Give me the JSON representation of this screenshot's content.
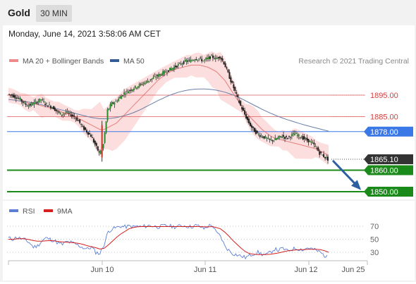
{
  "header": {
    "instrument": "Gold",
    "timeframe": "30 MIN"
  },
  "datetime": "Monday, June 14, 2021 3:58:06 AM CET",
  "legend": {
    "items": [
      {
        "label": "MA 20 + Bollinger Bands",
        "color": "#f08a8a"
      },
      {
        "label": "MA 50",
        "color": "#355c94"
      }
    ],
    "copyright": "Research © 2021 Trading Central"
  },
  "rsi_legend": {
    "items": [
      {
        "label": "RSI",
        "color": "#5b7fd6"
      },
      {
        "label": "9MA",
        "color": "#d62020"
      }
    ]
  },
  "colors": {
    "resistance": "#e06666",
    "pivot": "#3b78e7",
    "support": "#1a8a1a",
    "current": "#333333",
    "arrow": "#2e5fa3",
    "band_fill": "#fbd8d8"
  },
  "chart_data": [
    {
      "type": "candlestick",
      "x_labels": [
        "Jun 10",
        "Jun 11",
        "Jun 12",
        "Jun 25"
      ],
      "levels": [
        {
          "label": "1895.00",
          "value": 1895.0,
          "kind": "resistance"
        },
        {
          "label": "1885.00",
          "value": 1885.0,
          "kind": "resistance"
        },
        {
          "label": "1878.00",
          "value": 1878.0,
          "kind": "pivot"
        },
        {
          "label": "1865.10",
          "value": 1865.1,
          "kind": "current"
        },
        {
          "label": "1860.00",
          "value": 1860.0,
          "kind": "support"
        },
        {
          "label": "1850.00",
          "value": 1850.0,
          "kind": "support"
        }
      ],
      "price_path": [
        1895.5,
        1895,
        1894,
        1893,
        1891,
        1890,
        1891,
        1892,
        1893,
        1891,
        1890,
        1889,
        1887,
        1886,
        1887,
        1886,
        1885,
        1883,
        1880,
        1878,
        1876,
        1872,
        1868,
        1872,
        1888,
        1891,
        1892,
        1894,
        1896,
        1897,
        1898,
        1899,
        1900,
        1901,
        1902,
        1903,
        1904,
        1905,
        1906,
        1907,
        1908,
        1909,
        1910,
        1911,
        1911,
        1912,
        1912,
        1911,
        1912,
        1913,
        1912,
        1913,
        1910,
        1905,
        1900,
        1895,
        1890,
        1886,
        1882,
        1879,
        1877,
        1876,
        1875,
        1874,
        1874,
        1875,
        1876,
        1875,
        1876,
        1877,
        1876,
        1875,
        1874,
        1873,
        1871,
        1868,
        1866.5,
        1865.1
      ],
      "ma20": [
        1895,
        1894.5,
        1894,
        1893,
        1892,
        1891,
        1891,
        1890.5,
        1890,
        1889.5,
        1889,
        1888.5,
        1888,
        1887,
        1886.5,
        1886,
        1885,
        1884,
        1883,
        1882,
        1881,
        1880,
        1879,
        1879,
        1880,
        1881,
        1882,
        1884,
        1886,
        1888,
        1890,
        1892,
        1894,
        1896,
        1898,
        1900,
        1902,
        1903.5,
        1905,
        1906,
        1907,
        1907.5,
        1908,
        1908.5,
        1909,
        1909,
        1909,
        1908.5,
        1908,
        1907,
        1906,
        1904,
        1902,
        1899,
        1896,
        1893,
        1890,
        1887,
        1885,
        1883,
        1881,
        1879,
        1877.5,
        1876,
        1875,
        1874.5,
        1874,
        1873.5,
        1873,
        1872.5,
        1872,
        1871.5,
        1871,
        1870.5,
        1870,
        1869,
        1868,
        1867
      ],
      "ma50": [
        1893,
        1892.8,
        1892.5,
        1892.2,
        1892,
        1891.7,
        1891.4,
        1891,
        1890.5,
        1890,
        1889.5,
        1889,
        1888.5,
        1888,
        1887.5,
        1887,
        1886.5,
        1886,
        1885.5,
        1885,
        1884.6,
        1884.3,
        1884,
        1884,
        1884.1,
        1884.3,
        1884.6,
        1885,
        1885.5,
        1886.1,
        1886.8,
        1887.6,
        1888.5,
        1889.5,
        1890.5,
        1891.5,
        1892.5,
        1893.4,
        1894.3,
        1895.1,
        1895.8,
        1896.4,
        1896.9,
        1897.3,
        1897.6,
        1897.8,
        1897.9,
        1897.9,
        1897.8,
        1897.6,
        1897.3,
        1896.9,
        1896.4,
        1895.8,
        1895.1,
        1894.3,
        1893.4,
        1892.4,
        1891.4,
        1890.4,
        1889.4,
        1888.4,
        1887.5,
        1886.6,
        1885.8,
        1885,
        1884.3,
        1883.6,
        1883,
        1882.4,
        1881.8,
        1881.2,
        1880.7,
        1880.2,
        1879.7,
        1879.2,
        1878.7,
        1878.2
      ],
      "rsi": {
        "levels": [
          70,
          50,
          30
        ],
        "values": [
          52,
          50,
          53,
          51,
          49,
          45,
          38,
          40,
          47,
          52,
          50,
          48,
          44,
          42,
          46,
          45,
          43,
          40,
          37,
          35,
          38,
          30,
          28,
          42,
          62,
          66,
          68,
          70,
          69,
          70,
          69,
          70,
          69,
          70,
          71,
          70,
          69,
          70,
          71,
          70,
          69,
          70,
          71,
          70,
          69,
          71,
          70,
          66,
          70,
          72,
          60,
          55,
          40,
          33,
          28,
          26,
          24,
          22,
          25,
          28,
          30,
          27,
          26,
          30,
          35,
          33,
          36,
          32,
          34,
          36,
          35,
          34,
          37,
          35,
          33,
          30,
          25,
          22
        ],
        "ma9": [
          50,
          50,
          50.5,
          51,
          50.5,
          49.5,
          48,
          47,
          47,
          47.5,
          48,
          47.5,
          46.5,
          46,
          45.5,
          45,
          44.5,
          43.5,
          42,
          40,
          38.5,
          37,
          35,
          36,
          41,
          47,
          53,
          58,
          62,
          66,
          68,
          69,
          69.5,
          69.5,
          69.5,
          69.5,
          69.5,
          69.5,
          69.5,
          69.5,
          69.5,
          69.5,
          69.5,
          69.5,
          69.5,
          69.5,
          69.5,
          69,
          69,
          69.5,
          68,
          66,
          61,
          55,
          48,
          42,
          36,
          31,
          28,
          27,
          26.5,
          26.5,
          26.5,
          27,
          28,
          29,
          30.5,
          32,
          33,
          33.5,
          34,
          34,
          34.5,
          34.5,
          34.5,
          34,
          32.5,
          30
        ]
      }
    }
  ]
}
